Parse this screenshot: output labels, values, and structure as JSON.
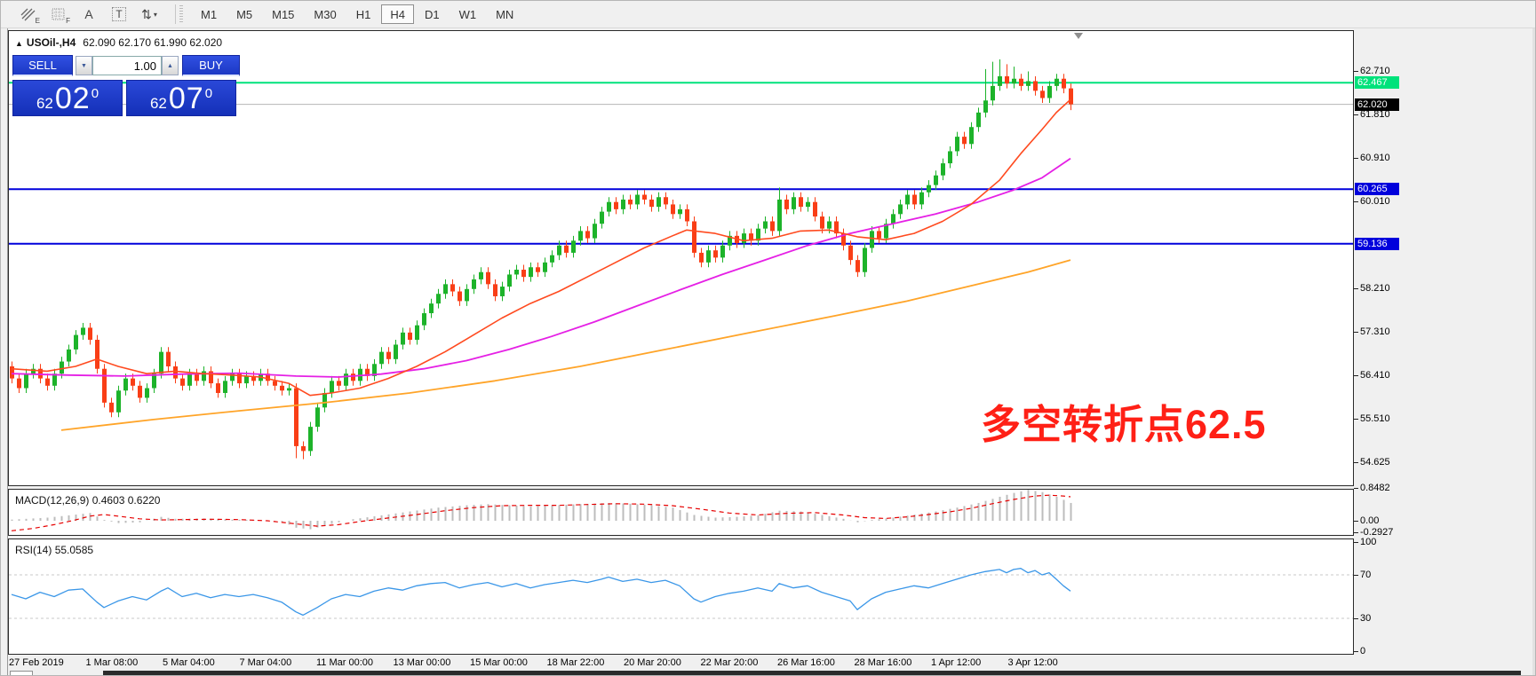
{
  "toolbar": {
    "tools": [
      {
        "name": "channels-tool",
        "sub": "E"
      },
      {
        "name": "fibonacci-tool",
        "sub": "F"
      },
      {
        "name": "text-tool",
        "glyph": "A"
      },
      {
        "name": "label-tool",
        "glyph": "T",
        "boxed": true
      },
      {
        "name": "arrows-tool",
        "glyph": "⇅",
        "caret": "▾"
      }
    ],
    "timeframes": [
      {
        "label": "M1"
      },
      {
        "label": "M5"
      },
      {
        "label": "M15"
      },
      {
        "label": "M30"
      },
      {
        "label": "H1"
      },
      {
        "label": "H4",
        "active": true
      },
      {
        "label": "D1"
      },
      {
        "label": "W1"
      },
      {
        "label": "MN"
      }
    ]
  },
  "chart": {
    "title_symbol": "USOil-,H4",
    "title_ohlc": "62.090 62.170 61.990 62.020",
    "trade_panel": {
      "sell_label": "SELL",
      "buy_label": "BUY",
      "volume": "1.00",
      "sell_small": "62",
      "sell_big": "02",
      "sell_sup": "0",
      "buy_small": "62",
      "buy_big": "07",
      "buy_sup": "0"
    },
    "annotation": {
      "text": "多空转折点62.5",
      "color": "#ff2016"
    },
    "colors": {
      "bull": "#1db32a",
      "bear": "#f93e16",
      "ma_fast": "#ff4a1f",
      "ma_mid": "#e520e5",
      "ma_slow": "#ffa428",
      "hline_green": "#00e27b",
      "hline_blue": "#0000dc",
      "current_line": "#b4b4b4",
      "macd_hist": "#bdbdbd",
      "macd_signal": "#e60000",
      "rsi_line": "#3b97e8"
    }
  },
  "y_axis": {
    "ticks": [
      62.71,
      61.81,
      60.91,
      60.01,
      58.21,
      57.31,
      56.41,
      55.51,
      54.625
    ],
    "highlights": [
      {
        "label": "62.467",
        "price": 62.467,
        "bg": "#00e27b"
      },
      {
        "label": "62.020",
        "price": 62.02,
        "bg": "#000000"
      },
      {
        "label": "60.265",
        "price": 60.265,
        "bg": "#0000dc"
      },
      {
        "label": "59.136",
        "price": 59.136,
        "bg": "#0000dc"
      }
    ]
  },
  "macd": {
    "label": "MACD(12,26,9)",
    "values": "0.4603 0.6220",
    "axis": [
      {
        "label": "0.8482",
        "v": 0.8482
      },
      {
        "label": "0.00",
        "v": 0
      },
      {
        "label": "-0.2927",
        "v": -0.2927
      }
    ],
    "hist": [
      [
        0,
        0.03
      ],
      [
        5,
        0.08
      ],
      [
        9,
        0.16
      ],
      [
        11,
        0.2
      ],
      [
        13,
        0.02
      ],
      [
        15,
        -0.06
      ],
      [
        18,
        -0.04
      ],
      [
        21,
        0.1
      ],
      [
        23,
        0.05
      ],
      [
        27,
        0.06
      ],
      [
        31,
        0.03
      ],
      [
        35,
        0.02
      ],
      [
        38,
        -0.02
      ],
      [
        40,
        -0.18
      ],
      [
        42,
        -0.22
      ],
      [
        45,
        -0.08
      ],
      [
        48,
        0.04
      ],
      [
        52,
        0.14
      ],
      [
        56,
        0.24
      ],
      [
        60,
        0.34
      ],
      [
        64,
        0.4
      ],
      [
        67,
        0.43
      ],
      [
        70,
        0.4
      ],
      [
        73,
        0.37
      ],
      [
        76,
        0.4
      ],
      [
        80,
        0.43
      ],
      [
        84,
        0.46
      ],
      [
        87,
        0.44
      ],
      [
        90,
        0.4
      ],
      [
        93,
        0.34
      ],
      [
        96,
        0.15
      ],
      [
        99,
        0.08
      ],
      [
        102,
        0.1
      ],
      [
        105,
        0.14
      ],
      [
        108,
        0.26
      ],
      [
        111,
        0.24
      ],
      [
        114,
        0.15
      ],
      [
        117,
        0.05
      ],
      [
        119,
        -0.04
      ],
      [
        121,
        0.02
      ],
      [
        124,
        0.08
      ],
      [
        127,
        0.16
      ],
      [
        130,
        0.24
      ],
      [
        133,
        0.34
      ],
      [
        136,
        0.46
      ],
      [
        139,
        0.62
      ],
      [
        141,
        0.72
      ],
      [
        143,
        0.8
      ],
      [
        145,
        0.74
      ],
      [
        147,
        0.62
      ],
      [
        149,
        0.46
      ]
    ],
    "signal": [
      [
        0,
        -0.26
      ],
      [
        3,
        -0.2
      ],
      [
        6,
        -0.1
      ],
      [
        9,
        0.02
      ],
      [
        11,
        0.12
      ],
      [
        13,
        0.16
      ],
      [
        15,
        0.12
      ],
      [
        18,
        0.05
      ],
      [
        21,
        0.02
      ],
      [
        24,
        0.03
      ],
      [
        28,
        0.04
      ],
      [
        32,
        0.03
      ],
      [
        36,
        0.0
      ],
      [
        40,
        -0.08
      ],
      [
        43,
        -0.14
      ],
      [
        46,
        -0.1
      ],
      [
        49,
        -0.02
      ],
      [
        53,
        0.07
      ],
      [
        57,
        0.16
      ],
      [
        61,
        0.26
      ],
      [
        65,
        0.34
      ],
      [
        69,
        0.39
      ],
      [
        73,
        0.4
      ],
      [
        77,
        0.4
      ],
      [
        81,
        0.42
      ],
      [
        85,
        0.44
      ],
      [
        89,
        0.43
      ],
      [
        93,
        0.39
      ],
      [
        97,
        0.3
      ],
      [
        101,
        0.2
      ],
      [
        105,
        0.15
      ],
      [
        109,
        0.19
      ],
      [
        113,
        0.21
      ],
      [
        117,
        0.15
      ],
      [
        120,
        0.08
      ],
      [
        123,
        0.06
      ],
      [
        126,
        0.1
      ],
      [
        129,
        0.16
      ],
      [
        132,
        0.23
      ],
      [
        135,
        0.32
      ],
      [
        138,
        0.44
      ],
      [
        141,
        0.55
      ],
      [
        144,
        0.64
      ],
      [
        146,
        0.66
      ],
      [
        148,
        0.64
      ],
      [
        149,
        0.62
      ]
    ]
  },
  "rsi": {
    "label": "RSI(14)",
    "value": "55.0585",
    "axis": [
      {
        "label": "100",
        "v": 100
      },
      {
        "label": "70",
        "v": 70
      },
      {
        "label": "30",
        "v": 30
      },
      {
        "label": "0",
        "v": 0
      }
    ],
    "levels": [
      70,
      30
    ],
    "points": [
      [
        0,
        52
      ],
      [
        2,
        48
      ],
      [
        4,
        54
      ],
      [
        6,
        50
      ],
      [
        8,
        56
      ],
      [
        10,
        57
      ],
      [
        12,
        45
      ],
      [
        13,
        40
      ],
      [
        15,
        46
      ],
      [
        17,
        50
      ],
      [
        19,
        47
      ],
      [
        21,
        55
      ],
      [
        22,
        58
      ],
      [
        24,
        50
      ],
      [
        26,
        53
      ],
      [
        28,
        49
      ],
      [
        30,
        52
      ],
      [
        32,
        50
      ],
      [
        34,
        52
      ],
      [
        36,
        49
      ],
      [
        38,
        45
      ],
      [
        40,
        36
      ],
      [
        41,
        33
      ],
      [
        43,
        40
      ],
      [
        45,
        48
      ],
      [
        47,
        52
      ],
      [
        49,
        50
      ],
      [
        51,
        55
      ],
      [
        53,
        58
      ],
      [
        55,
        56
      ],
      [
        57,
        60
      ],
      [
        59,
        62
      ],
      [
        61,
        63
      ],
      [
        63,
        58
      ],
      [
        65,
        61
      ],
      [
        67,
        63
      ],
      [
        69,
        59
      ],
      [
        71,
        62
      ],
      [
        73,
        58
      ],
      [
        75,
        61
      ],
      [
        77,
        63
      ],
      [
        79,
        65
      ],
      [
        81,
        63
      ],
      [
        83,
        66
      ],
      [
        84,
        68
      ],
      [
        86,
        64
      ],
      [
        88,
        66
      ],
      [
        90,
        63
      ],
      [
        92,
        65
      ],
      [
        94,
        60
      ],
      [
        96,
        48
      ],
      [
        97,
        45
      ],
      [
        99,
        50
      ],
      [
        101,
        53
      ],
      [
        103,
        55
      ],
      [
        105,
        58
      ],
      [
        107,
        55
      ],
      [
        108,
        62
      ],
      [
        110,
        58
      ],
      [
        112,
        60
      ],
      [
        114,
        54
      ],
      [
        116,
        50
      ],
      [
        118,
        46
      ],
      [
        119,
        38
      ],
      [
        121,
        48
      ],
      [
        123,
        54
      ],
      [
        125,
        57
      ],
      [
        127,
        60
      ],
      [
        129,
        58
      ],
      [
        131,
        62
      ],
      [
        133,
        66
      ],
      [
        135,
        70
      ],
      [
        137,
        73
      ],
      [
        139,
        75
      ],
      [
        140,
        72
      ],
      [
        141,
        75
      ],
      [
        142,
        76
      ],
      [
        143,
        72
      ],
      [
        144,
        74
      ],
      [
        145,
        70
      ],
      [
        146,
        72
      ],
      [
        147,
        66
      ],
      [
        148,
        60
      ],
      [
        149,
        55.06
      ]
    ]
  },
  "x_axis": {
    "labels": [
      "27 Feb 2019",
      "1 Mar 08:00",
      "5 Mar 04:00",
      "7 Mar 04:00",
      "11 Mar 00:00",
      "13 Mar 00:00",
      "15 Mar 00:00",
      "18 Mar 22:00",
      "20 Mar 20:00",
      "22 Mar 20:00",
      "26 Mar 16:00",
      "28 Mar 16:00",
      "1 Apr 12:00",
      "3 Apr 12:00"
    ]
  },
  "chart_data": {
    "type": "candlestick",
    "symbol": "USOil",
    "timeframe": "H4",
    "first_open": 56.6,
    "default_wick": 0.1,
    "closes": [
      56.35,
      56.15,
      56.45,
      56.55,
      56.35,
      56.2,
      56.45,
      56.7,
      56.95,
      57.25,
      57.4,
      57.15,
      56.55,
      55.85,
      55.65,
      56.1,
      56.35,
      56.2,
      55.95,
      56.15,
      56.45,
      56.9,
      56.6,
      56.35,
      56.2,
      56.45,
      56.3,
      56.5,
      56.25,
      56.05,
      56.3,
      56.45,
      56.25,
      56.4,
      56.3,
      56.45,
      56.3,
      56.2,
      56.1,
      56.15,
      54.95,
      54.85,
      55.35,
      55.75,
      56.05,
      56.3,
      56.2,
      56.45,
      56.3,
      56.55,
      56.4,
      56.65,
      56.9,
      56.75,
      57.05,
      57.3,
      57.15,
      57.45,
      57.7,
      57.9,
      58.1,
      58.3,
      58.15,
      57.95,
      58.2,
      58.4,
      58.55,
      58.3,
      58.05,
      58.25,
      58.5,
      58.6,
      58.45,
      58.65,
      58.55,
      58.75,
      58.9,
      59.1,
      58.95,
      59.2,
      59.4,
      59.25,
      59.55,
      59.8,
      60.0,
      59.85,
      60.05,
      59.95,
      60.15,
      60.05,
      59.9,
      60.1,
      59.95,
      59.75,
      59.85,
      59.6,
      58.95,
      58.75,
      59.0,
      58.85,
      59.1,
      59.3,
      59.15,
      59.35,
      59.2,
      59.45,
      59.6,
      59.4,
      60.05,
      59.85,
      60.1,
      59.9,
      60.0,
      59.7,
      59.45,
      59.6,
      59.35,
      59.1,
      58.8,
      58.55,
      59.05,
      59.4,
      59.25,
      59.55,
      59.75,
      59.95,
      60.15,
      59.95,
      60.2,
      60.35,
      60.55,
      60.8,
      61.05,
      61.35,
      61.2,
      61.55,
      61.85,
      62.1,
      62.4,
      62.6,
      62.45,
      62.55,
      62.4,
      62.5,
      62.3,
      62.15,
      62.4,
      62.55,
      62.35,
      62.02
    ],
    "wick_overrides": {
      "40": {
        "low": 54.7
      },
      "41": {
        "low": 54.68
      },
      "108": {
        "high": 60.3
      },
      "119": {
        "low": 58.45
      },
      "137": {
        "high": 62.75
      },
      "138": {
        "high": 62.9
      },
      "139": {
        "high": 62.95
      },
      "140": {
        "high": 62.85
      },
      "141": {
        "high": 62.8
      },
      "143": {
        "high": 62.7
      },
      "149": {
        "low": 61.9
      }
    },
    "hlines": [
      {
        "price": 62.467,
        "type": "green"
      },
      {
        "price": 60.265,
        "type": "blue"
      },
      {
        "price": 59.136,
        "type": "blue"
      }
    ],
    "current_price": 62.02,
    "ma_fast": [
      [
        0,
        56.55
      ],
      [
        5,
        56.5
      ],
      [
        9,
        56.6
      ],
      [
        12,
        56.75
      ],
      [
        15,
        56.6
      ],
      [
        19,
        56.45
      ],
      [
        23,
        56.5
      ],
      [
        27,
        56.45
      ],
      [
        31,
        56.42
      ],
      [
        35,
        56.38
      ],
      [
        39,
        56.25
      ],
      [
        42,
        56.0
      ],
      [
        45,
        56.05
      ],
      [
        49,
        56.15
      ],
      [
        53,
        56.35
      ],
      [
        57,
        56.6
      ],
      [
        61,
        56.9
      ],
      [
        65,
        57.25
      ],
      [
        69,
        57.6
      ],
      [
        73,
        57.9
      ],
      [
        77,
        58.15
      ],
      [
        81,
        58.45
      ],
      [
        85,
        58.75
      ],
      [
        89,
        59.05
      ],
      [
        93,
        59.3
      ],
      [
        95,
        59.42
      ],
      [
        99,
        59.35
      ],
      [
        103,
        59.2
      ],
      [
        107,
        59.25
      ],
      [
        111,
        59.4
      ],
      [
        115,
        59.42
      ],
      [
        119,
        59.28
      ],
      [
        123,
        59.22
      ],
      [
        127,
        59.35
      ],
      [
        131,
        59.6
      ],
      [
        135,
        59.95
      ],
      [
        139,
        60.45
      ],
      [
        142,
        61.0
      ],
      [
        145,
        61.5
      ],
      [
        147,
        61.85
      ],
      [
        149,
        62.12
      ]
    ],
    "ma_mid": [
      [
        0,
        56.45
      ],
      [
        8,
        56.42
      ],
      [
        16,
        56.4
      ],
      [
        24,
        56.44
      ],
      [
        32,
        56.46
      ],
      [
        40,
        56.4
      ],
      [
        46,
        56.38
      ],
      [
        52,
        56.44
      ],
      [
        58,
        56.55
      ],
      [
        64,
        56.72
      ],
      [
        70,
        56.95
      ],
      [
        76,
        57.22
      ],
      [
        82,
        57.52
      ],
      [
        88,
        57.85
      ],
      [
        94,
        58.18
      ],
      [
        100,
        58.5
      ],
      [
        106,
        58.8
      ],
      [
        112,
        59.1
      ],
      [
        118,
        59.35
      ],
      [
        124,
        59.55
      ],
      [
        130,
        59.75
      ],
      [
        136,
        60.0
      ],
      [
        141,
        60.25
      ],
      [
        145,
        60.5
      ],
      [
        149,
        60.9
      ]
    ],
    "ma_slow": [
      [
        7,
        55.28
      ],
      [
        20,
        55.5
      ],
      [
        32,
        55.68
      ],
      [
        44,
        55.85
      ],
      [
        56,
        56.05
      ],
      [
        68,
        56.3
      ],
      [
        80,
        56.6
      ],
      [
        92,
        56.95
      ],
      [
        104,
        57.3
      ],
      [
        116,
        57.65
      ],
      [
        126,
        57.95
      ],
      [
        136,
        58.3
      ],
      [
        143,
        58.55
      ],
      [
        149,
        58.8
      ]
    ]
  }
}
